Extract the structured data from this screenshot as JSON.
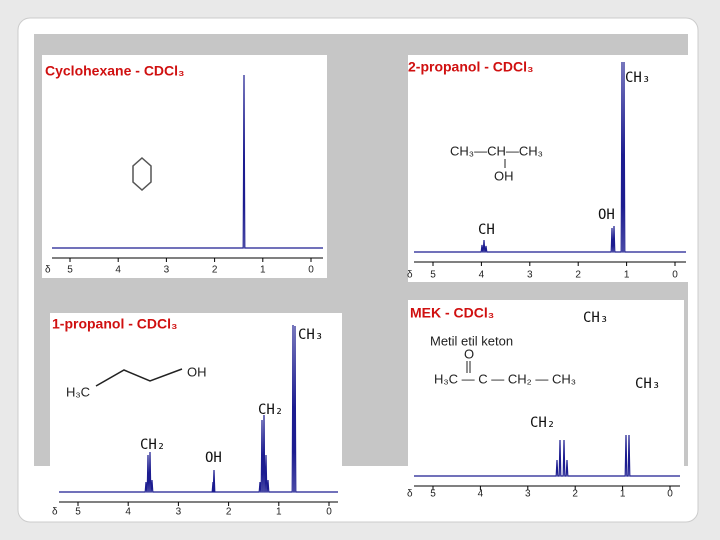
{
  "panels": [
    {
      "title": "Cyclohexane - CDCl₃",
      "axis_symbol": "δ",
      "ticks": [
        5,
        4,
        3,
        2,
        1,
        0
      ],
      "labels": []
    },
    {
      "title": "2-propanol  - CDCl₃",
      "axis_symbol": "δ",
      "ticks": [
        5,
        4,
        3,
        2,
        1,
        0
      ],
      "labels": [
        "CH₃",
        "CH",
        "OH"
      ],
      "structure": [
        "CH₃—CH—CH₃",
        "OH"
      ]
    },
    {
      "title": "1-propanol  - CDCl₃",
      "axis_symbol": "δ",
      "ticks": [
        5,
        4,
        3,
        2,
        1,
        0
      ],
      "labels": [
        "CH₃",
        "CH₂",
        "CH₂",
        "OH"
      ],
      "structure": [
        "OH",
        "H₃C"
      ]
    },
    {
      "title": "MEK - CDCl₃",
      "subtitle": "Metil etil keton",
      "axis_symbol": "δ",
      "ticks": [
        5,
        4,
        3,
        2,
        1,
        0
      ],
      "labels": [
        "CH₃",
        "CH₃",
        "CH₂"
      ],
      "structure": [
        "O",
        "H₃C — C — CH₂ — CH₃"
      ]
    }
  ]
}
